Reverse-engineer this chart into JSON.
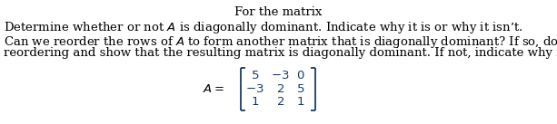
{
  "title": "For the matrix",
  "line1": "Determine whether or not $A$ is diagonally dominant. Indicate why it is or why it isn’t.",
  "line2": "Can we reorder the rows of $A$ to form another matrix that is diagonally dominant? If so, do that",
  "line3": "reordering and show that the resulting matrix is diagonally dominant. If not, indicate why not.",
  "matrix_label": "$A = $",
  "matrix_rows": [
    [
      "5",
      "-3",
      "0"
    ],
    [
      "-3",
      "2",
      "5"
    ],
    [
      "1",
      "2",
      "1"
    ]
  ],
  "bg_color": "#ffffff",
  "text_color": "#000000",
  "bracket_color": "#1a3a6b",
  "matrix_text_color": "#1a3a6b",
  "font_size_title": 9.5,
  "font_size_body": 9.5,
  "font_size_matrix": 9.5,
  "fig_width": 6.13,
  "fig_height": 1.37,
  "dpi": 100
}
